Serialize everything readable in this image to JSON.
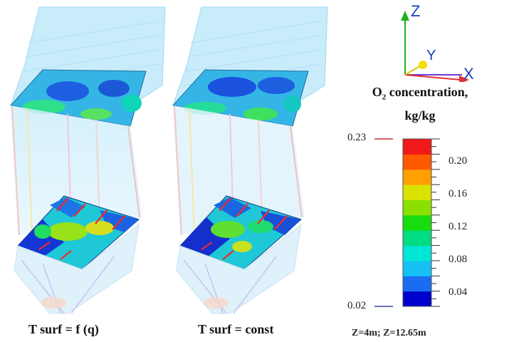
{
  "figure": {
    "left_panel_caption": "T surf = f (q)",
    "right_panel_caption": "T surf = const",
    "footnote": "Z=4m; Z=12.65m"
  },
  "axes": {
    "z_label": "Z",
    "y_label": "Y",
    "x_label": "X"
  },
  "colorbar": {
    "title_main": "O",
    "title_sub": "2",
    "title_rest": " concentration,",
    "unit": "kg/kg",
    "min_label": "0.02",
    "max_label": "0.23",
    "tick_labels": [
      "0.20",
      "0.16",
      "0.12",
      "0.08",
      "0.04"
    ],
    "band_colors": [
      "#0000cc",
      "#1a6df0",
      "#16c0f5",
      "#00e6d5",
      "#00dc82",
      "#18dc10",
      "#8ce000",
      "#d9e200",
      "#ffa000",
      "#ff5a00",
      "#f01818"
    ]
  }
}
